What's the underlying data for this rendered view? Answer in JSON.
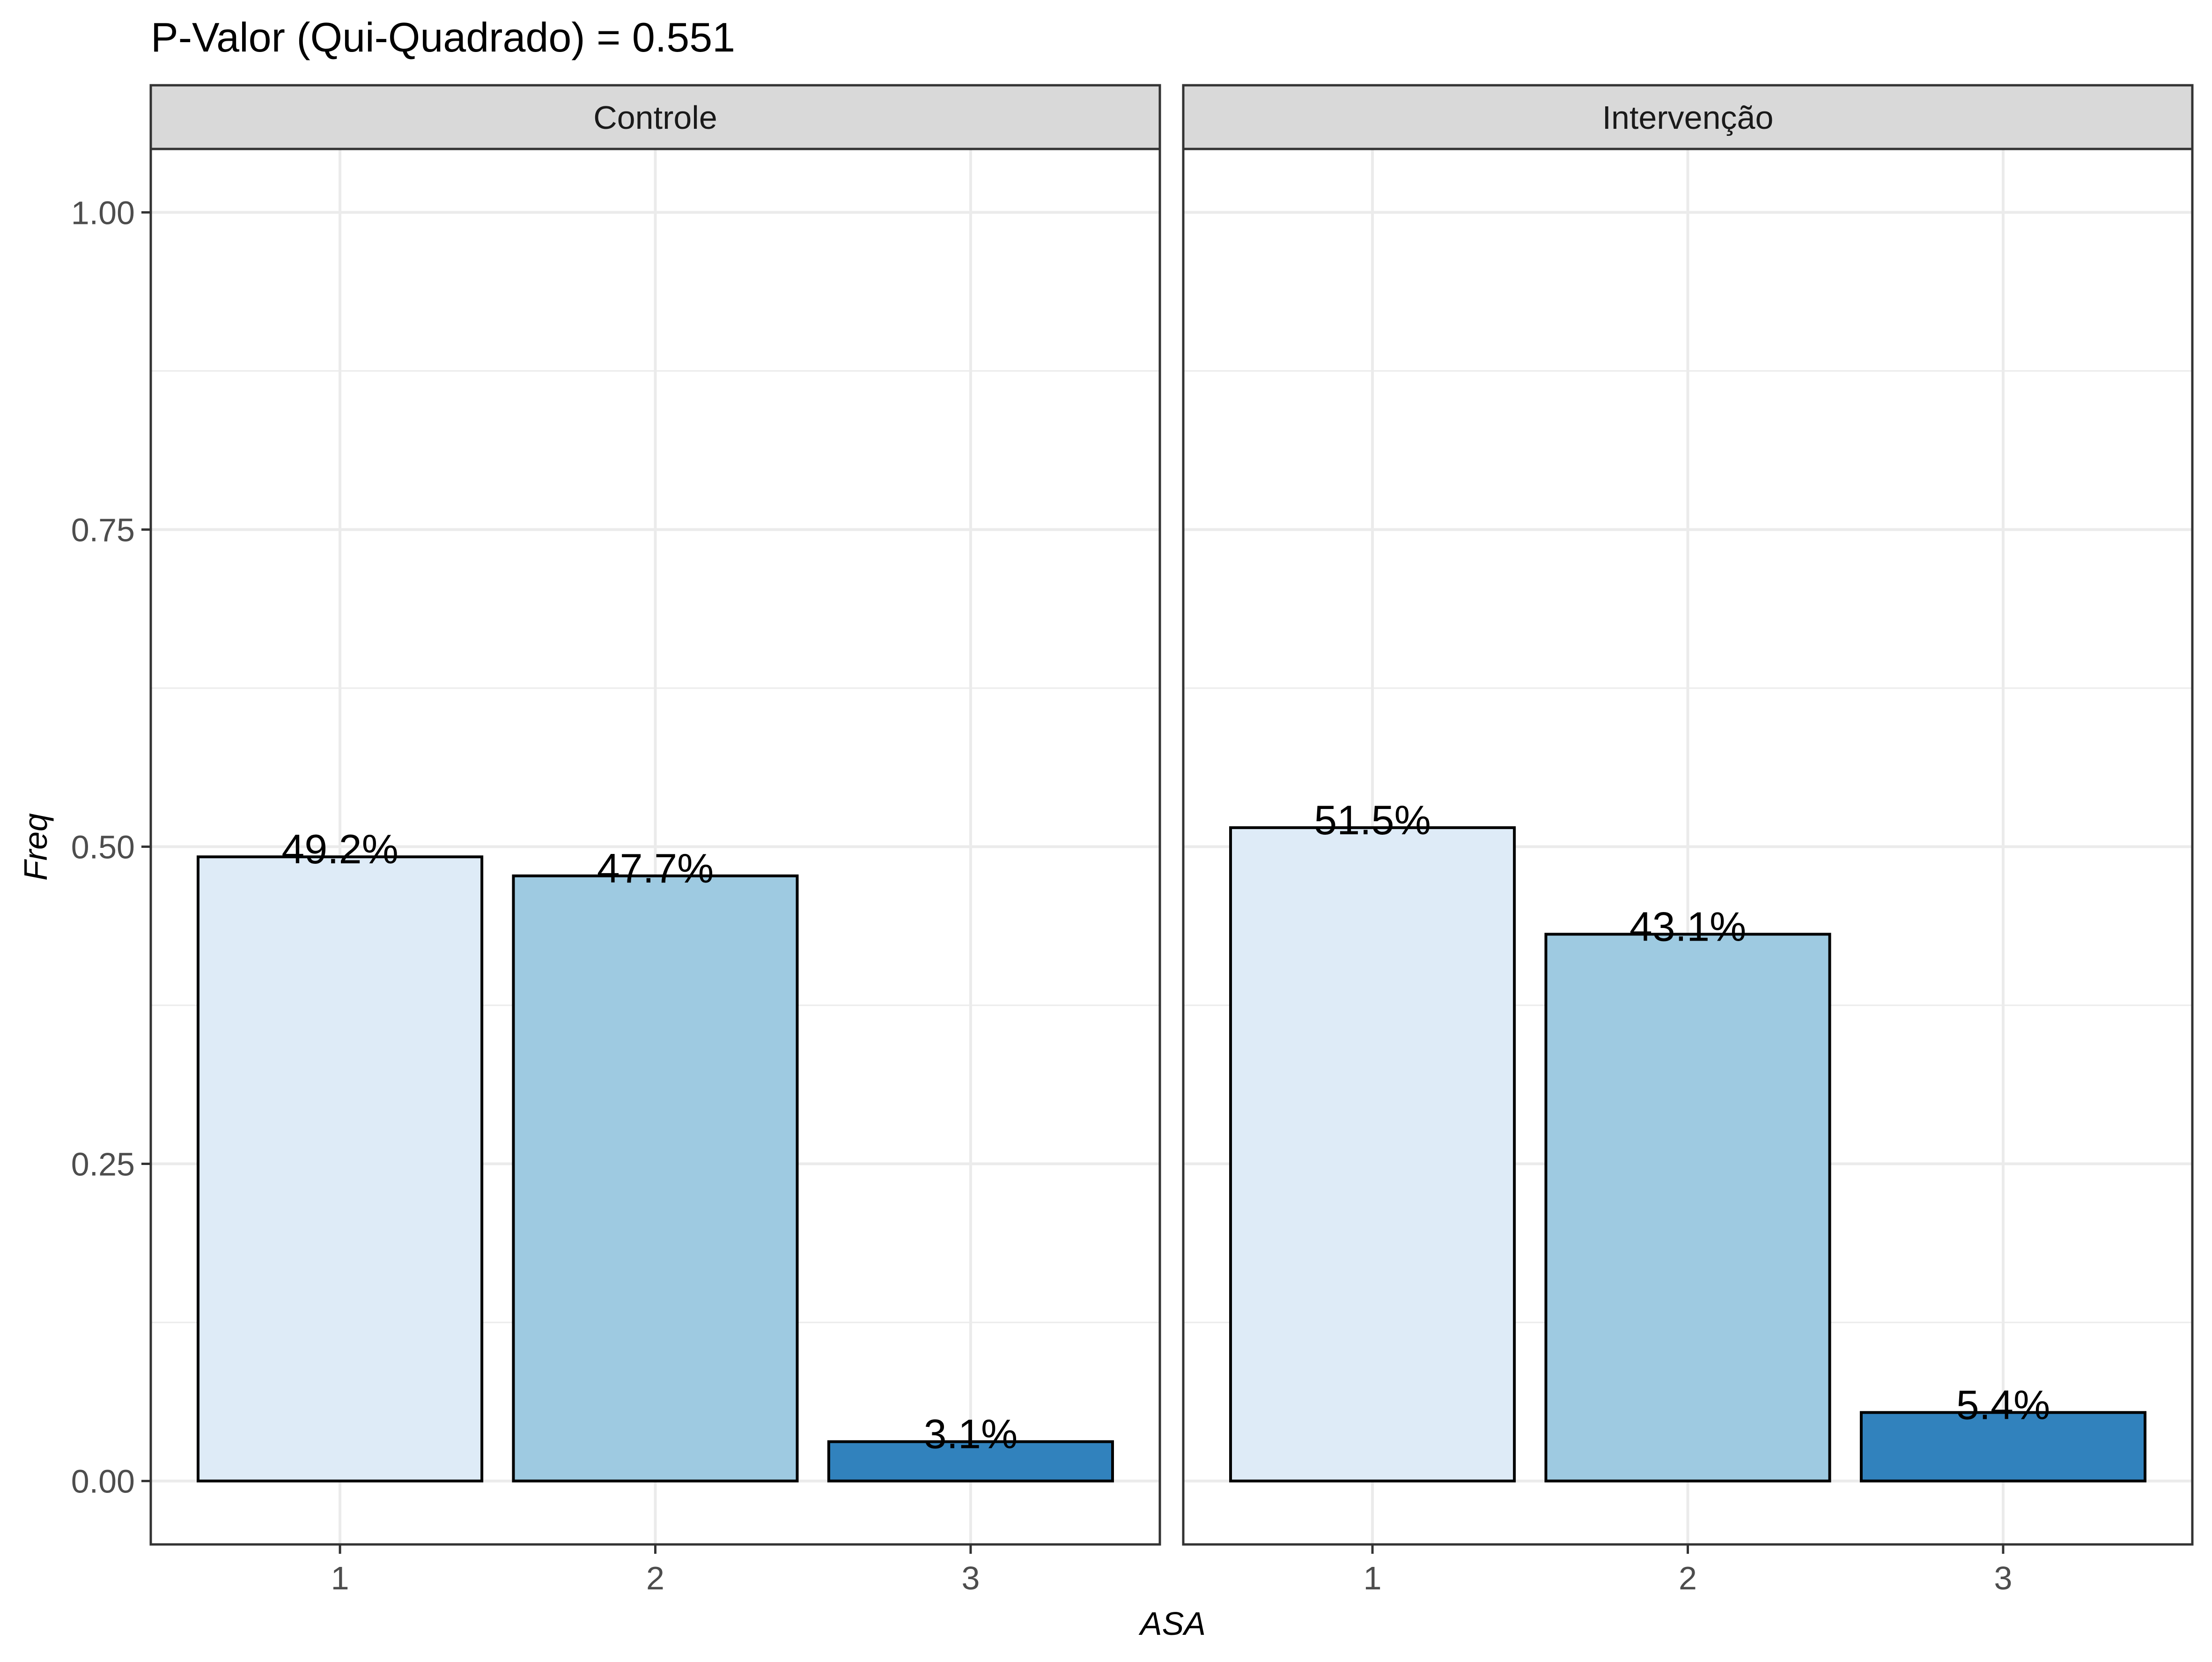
{
  "chart_data": {
    "type": "bar",
    "title": "P-Valor (Qui-Quadrado) = 0.551",
    "xlabel": "ASA",
    "ylabel": "Freq",
    "ylim": [
      -0.05,
      1.05
    ],
    "y_ticks": [
      "0.00",
      "0.25",
      "0.50",
      "0.75",
      "1.00"
    ],
    "y_tick_values": [
      0,
      0.25,
      0.5,
      0.75,
      1.0
    ],
    "categories": [
      "1",
      "2",
      "3"
    ],
    "grid": true,
    "legend": "none",
    "colors": {
      "1": "#deebf7",
      "2": "#9ecae1",
      "3": "#3182bd"
    },
    "panels": [
      {
        "name": "Controle",
        "values": [
          0.492,
          0.477,
          0.031
        ],
        "labels": [
          "49.2%",
          "47.7%",
          "3.1%"
        ]
      },
      {
        "name": "Intervenção",
        "values": [
          0.515,
          0.431,
          0.054
        ],
        "labels": [
          "51.5%",
          "43.1%",
          "5.4%"
        ]
      }
    ]
  }
}
